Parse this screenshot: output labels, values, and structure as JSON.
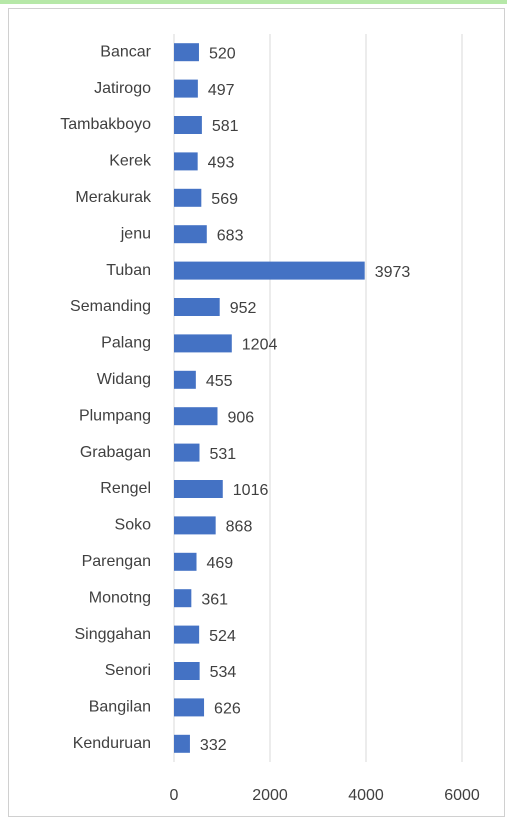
{
  "chart_data": {
    "type": "bar",
    "orientation": "horizontal",
    "categories": [
      "Bancar",
      "Jatirogo",
      "Tambakboyo",
      "Kerek",
      "Merakurak",
      "jenu",
      "Tuban",
      "Semanding",
      "Palang",
      "Widang",
      "Plumpang",
      "Grabagan",
      "Rengel",
      "Soko",
      "Parengan",
      "Monotng",
      "Singgahan",
      "Senori",
      "Bangilan",
      "Kenduruan"
    ],
    "values": [
      520,
      497,
      581,
      493,
      569,
      683,
      3973,
      952,
      1204,
      455,
      906,
      531,
      1016,
      868,
      469,
      361,
      524,
      534,
      626,
      332
    ],
    "color": "#4472c4",
    "xlim": [
      0,
      6000
    ],
    "xticks": [
      0,
      2000,
      4000,
      6000
    ],
    "grid": true
  }
}
